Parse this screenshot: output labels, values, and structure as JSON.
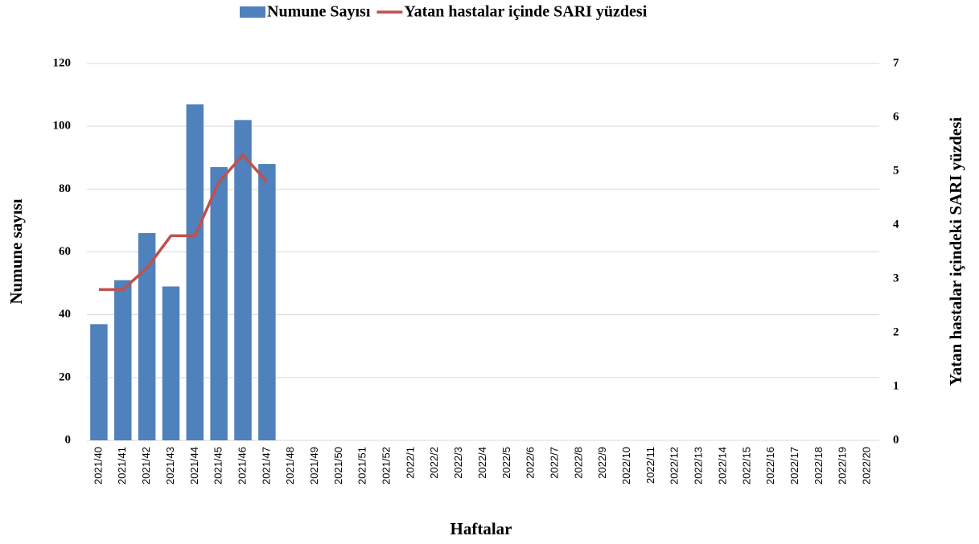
{
  "chart_data": {
    "type": "bar-line",
    "categories": [
      "2021/40",
      "2021/41",
      "2021/42",
      "2021/43",
      "2021/44",
      "2021/45",
      "2021/46",
      "2021/47",
      "2021/48",
      "2021/49",
      "2021/50",
      "2021/51",
      "2021/52",
      "2022/1",
      "2022/2",
      "2022/3",
      "2022/4",
      "2022/5",
      "2022/6",
      "2022/7",
      "2022/8",
      "2022/9",
      "2022/10",
      "2022/11",
      "2022/12",
      "2022/13",
      "2022/14",
      "2022/15",
      "2022/16",
      "2022/17",
      "2022/18",
      "2022/19",
      "2022/20"
    ],
    "series": [
      {
        "name": "Numune Sayısı",
        "type": "bar",
        "color": "#4f81bd",
        "values": [
          37,
          51,
          66,
          49,
          107,
          87,
          102,
          88,
          null,
          null,
          null,
          null,
          null,
          null,
          null,
          null,
          null,
          null,
          null,
          null,
          null,
          null,
          null,
          null,
          null,
          null,
          null,
          null,
          null,
          null,
          null,
          null,
          null
        ]
      },
      {
        "name": "Yatan hastalar içinde SARI yüzdesi",
        "type": "line",
        "axis": "y2",
        "color": "#c0504d",
        "values": [
          2.8,
          2.8,
          3.2,
          3.8,
          3.8,
          4.8,
          5.3,
          4.8,
          null,
          null,
          null,
          null,
          null,
          null,
          null,
          null,
          null,
          null,
          null,
          null,
          null,
          null,
          null,
          null,
          null,
          null,
          null,
          null,
          null,
          null,
          null,
          null,
          null
        ]
      }
    ],
    "xlabel": "Haftalar",
    "ylabel": "Numune sayısı",
    "y2label": "Yatan hastalar içindeki SARI yüzdesi",
    "ylim": [
      0,
      120
    ],
    "yticks": [
      0,
      20,
      40,
      60,
      80,
      100,
      120
    ],
    "y2lim": [
      0,
      7
    ],
    "y2ticks": [
      0,
      1,
      2,
      3,
      4,
      5,
      6,
      7
    ],
    "grid": true,
    "legend": "top"
  }
}
